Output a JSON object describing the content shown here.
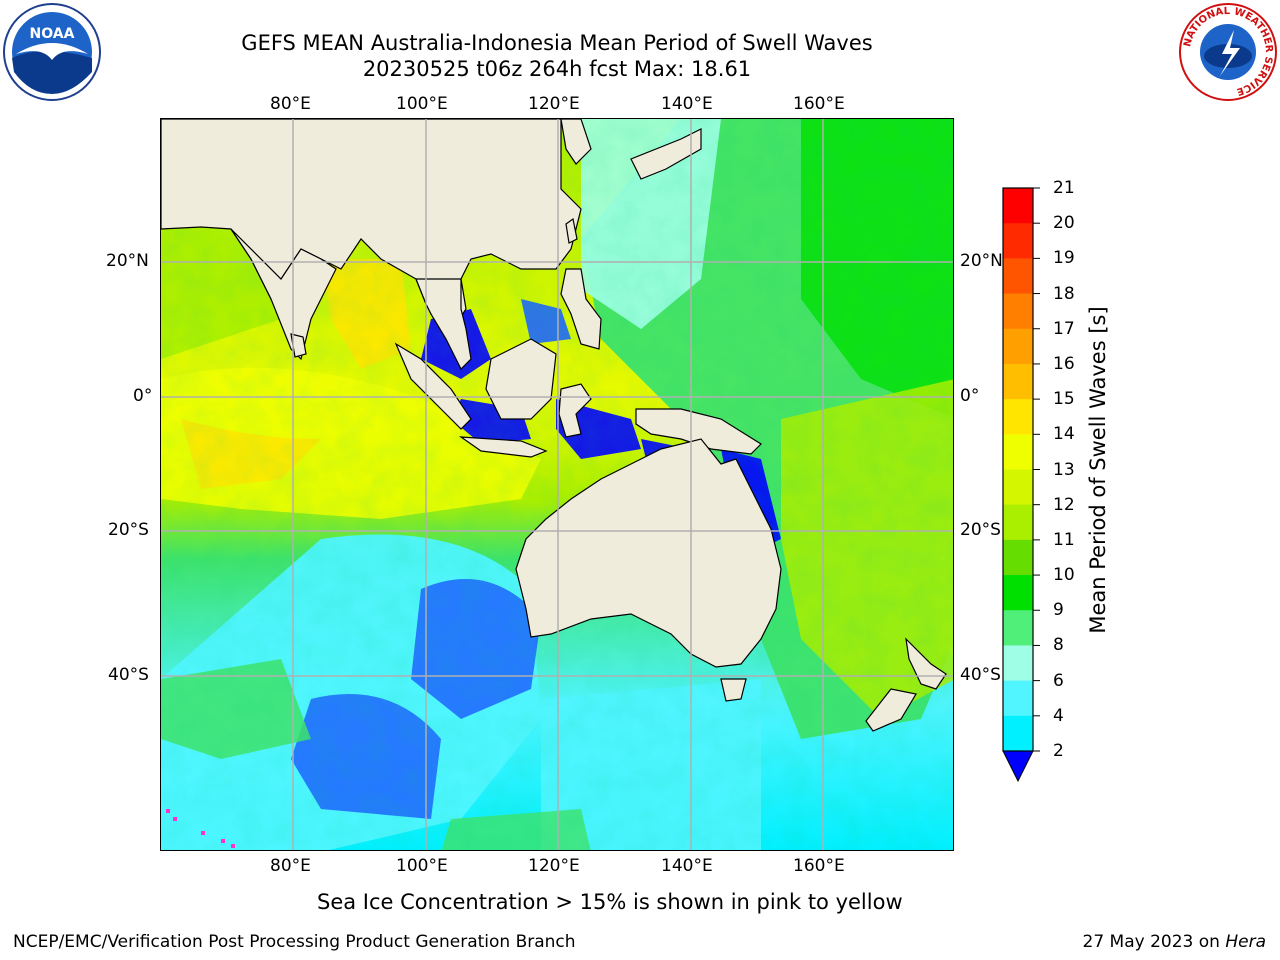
{
  "title": {
    "line1": "GEFS MEAN Australia-Indonesia Mean Period of Swell Waves",
    "line2": "20230525 t06z 264h fcst   Max: 18.61"
  },
  "map": {
    "lon_ticks_top": [
      "80°E",
      "100°E",
      "120°E",
      "140°E",
      "160°E"
    ],
    "lon_ticks_bottom": [
      "80°E",
      "100°E",
      "120°E",
      "140°E",
      "160°E"
    ],
    "lat_ticks_left": [
      "20°N",
      "0°",
      "20°S",
      "40°S"
    ],
    "lat_ticks_right": [
      "20°N",
      "0°",
      "20°S",
      "40°S"
    ],
    "land_color": "#efecdc",
    "grid_color": "#b0b0b0"
  },
  "colorbar": {
    "label": "Mean Period of Swell Waves [s]",
    "ticks": [
      "21",
      "20",
      "19",
      "18",
      "17",
      "16",
      "15",
      "14",
      "13",
      "12",
      "11",
      "10",
      "9",
      "8",
      "6",
      "4",
      "2"
    ],
    "colors_top_to_bottom": [
      "#ff0000",
      "#ff2a00",
      "#ff5500",
      "#ff7f00",
      "#ff9f00",
      "#ffbf00",
      "#ffe500",
      "#f0ff00",
      "#d4f700",
      "#aaee00",
      "#66dd00",
      "#00e000",
      "#4fef7a",
      "#9fffe6",
      "#50f5ff",
      "#00f0ff",
      "#0078ff"
    ],
    "extend_color": "#0000ff"
  },
  "note": "Sea Ice Concentration > 15% is shown in pink to yellow",
  "footer": {
    "left": "NCEP/EMC/Verification Post Processing Product Generation Branch",
    "date": "27 May 2023 on",
    "machine": "Hera"
  },
  "logos": {
    "noaa": "NOAA",
    "nws": "NATIONAL WEATHER SERVICE"
  }
}
